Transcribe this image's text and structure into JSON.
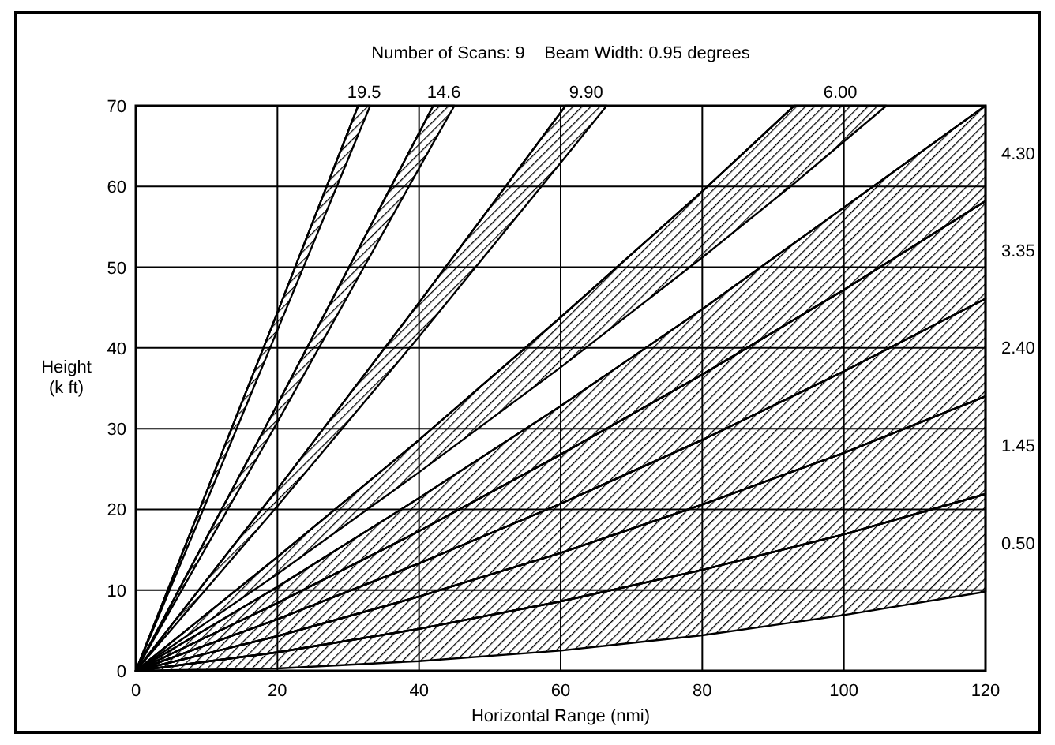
{
  "chart_data": {
    "type": "line",
    "title": "Number of Scans: 9    Beam Width: 0.95 degrees",
    "xlabel": "Horizontal Range (nmi)",
    "ylabel": "Height (k ft)",
    "xlim": [
      0,
      120
    ],
    "ylim": [
      0,
      70
    ],
    "xticks": [
      0,
      20,
      40,
      60,
      80,
      100,
      120
    ],
    "yticks": [
      0,
      10,
      20,
      30,
      40,
      50,
      60,
      70
    ],
    "grid": true,
    "legend": false,
    "series": [
      {
        "name": "0.50",
        "color": "#000000",
        "x": [
          0,
          20,
          40,
          60,
          80,
          100,
          120
        ],
        "values": [
          0,
          2.3,
          5.2,
          8.6,
          12.5,
          16.9,
          21.9
        ],
        "lower": [
          0,
          0.3,
          1.2,
          2.5,
          4.4,
          6.9,
          9.8
        ],
        "upper": [
          0,
          2.3,
          5.2,
          8.6,
          12.5,
          16.9,
          21.9
        ]
      },
      {
        "name": "1.45",
        "color": "#000000",
        "x": [
          0,
          20,
          40,
          60,
          80,
          100,
          120
        ],
        "values": [
          0,
          4.3,
          9.2,
          14.6,
          20.6,
          27.0,
          34.0
        ],
        "lower": [
          0,
          2.3,
          5.2,
          8.6,
          12.5,
          16.9,
          21.9
        ],
        "upper": [
          0,
          4.3,
          9.2,
          14.6,
          20.6,
          27.0,
          34.0
        ]
      },
      {
        "name": "2.40",
        "color": "#000000",
        "x": [
          0,
          20,
          40,
          60,
          80,
          100,
          120
        ],
        "values": [
          0,
          6.4,
          13.3,
          20.7,
          28.6,
          37.1,
          46.1
        ],
        "lower": [
          0,
          4.3,
          9.2,
          14.6,
          20.6,
          27.0,
          34.0
        ],
        "upper": [
          0,
          6.4,
          13.3,
          20.7,
          28.6,
          37.1,
          46.1
        ]
      },
      {
        "name": "3.35",
        "color": "#000000",
        "x": [
          0,
          20,
          40,
          60,
          80,
          100,
          120
        ],
        "values": [
          0,
          8.4,
          17.3,
          26.8,
          36.7,
          47.2,
          58.2
        ],
        "lower": [
          0,
          6.4,
          13.3,
          20.7,
          28.6,
          37.1,
          46.1
        ],
        "upper": [
          0,
          8.4,
          17.3,
          26.8,
          36.7,
          47.2,
          58.2
        ]
      },
      {
        "name": "4.30",
        "color": "#000000",
        "x": [
          0,
          20,
          40,
          60,
          80,
          100,
          120
        ],
        "values": [
          0,
          10.4,
          21.4,
          32.8,
          44.8,
          57.4,
          70
        ],
        "lower": [
          0,
          8.4,
          17.3,
          26.8,
          36.7,
          47.2,
          58.2
        ],
        "upper": [
          0,
          10.4,
          21.4,
          32.8,
          44.8,
          57.4,
          70
        ]
      },
      {
        "name": "6.00",
        "color": "#000000",
        "x": [
          0,
          20,
          40,
          60,
          80,
          93,
          106
        ],
        "values": [
          0,
          14.1,
          28.6,
          43.8,
          59.4,
          70,
          null
        ],
        "lower": [
          0,
          12.0,
          24.6,
          37.6,
          51.2,
          60.4,
          70
        ],
        "upper": [
          0,
          14.1,
          28.6,
          43.8,
          59.4,
          70,
          70
        ]
      },
      {
        "name": "9.90",
        "color": "#000000",
        "x": [
          0,
          20,
          40,
          60.7,
          66.5
        ],
        "values": [
          0,
          22.5,
          45.6,
          70,
          null
        ],
        "lower": [
          0,
          20.4,
          41.4,
          63.7,
          70
        ],
        "upper": [
          0,
          22.5,
          45.6,
          70,
          70
        ]
      },
      {
        "name": "14.6",
        "color": "#000000",
        "x": [
          0,
          20,
          42,
          45
        ],
        "values": [
          0,
          33.0,
          70,
          null
        ],
        "lower": [
          0,
          30.8,
          65.4,
          70
        ],
        "upper": [
          0,
          33.0,
          70,
          70
        ]
      },
      {
        "name": "19.5",
        "color": "#000000",
        "x": [
          0,
          10,
          20,
          31.4,
          33.1
        ],
        "values": [
          0,
          22.2,
          44.4,
          70,
          null
        ],
        "lower": [
          0,
          21.0,
          42.2,
          66.4,
          70
        ],
        "upper": [
          0,
          22.2,
          44.4,
          70,
          70
        ]
      }
    ]
  }
}
